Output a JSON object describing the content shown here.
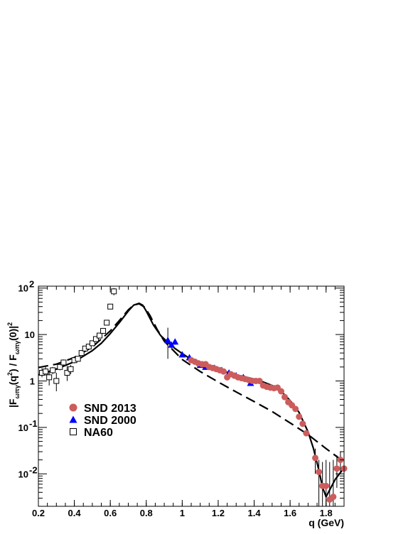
{
  "chart_data": {
    "type": "scatter",
    "xlabel": "q (GeV)",
    "ylabel_parts": [
      "|F",
      "ωπγ",
      "(q",
      "2",
      ") / F",
      "ωπγ",
      "(0)|",
      "2"
    ],
    "xlim": [
      0.2,
      1.9
    ],
    "ylim": [
      0.002,
      110
    ],
    "yscale": "log",
    "x_ticks": [
      0.2,
      0.4,
      0.6,
      0.8,
      1,
      1.2,
      1.4,
      1.6,
      1.8
    ],
    "x_tick_labels": [
      "0.2",
      "0.4",
      "0.6",
      "0.8",
      "1",
      "1.2",
      "1.4",
      "1.6",
      "1.8"
    ],
    "y_ticks": [
      {
        "value": 0.01,
        "base": "10",
        "exp": "-2"
      },
      {
        "value": 0.1,
        "base": "10",
        "exp": "-1"
      },
      {
        "value": 1,
        "base": "1",
        "exp": ""
      },
      {
        "value": 10,
        "base": "10",
        "exp": ""
      },
      {
        "value": 100,
        "base": "10",
        "exp": "2"
      }
    ],
    "legend": [
      "SND 2013",
      "SND 2000",
      "NA60"
    ],
    "legend_position": "lower-left",
    "colors": {
      "snd2013": "#cd5c5c",
      "snd2000": "#0000ff",
      "na60": "#000000",
      "curve": "#000000"
    },
    "series": [
      {
        "name": "NA60",
        "marker": "open-square",
        "points": [
          {
            "x": 0.22,
            "y": 1.5,
            "lo": 1.2,
            "hi": 1.9
          },
          {
            "x": 0.24,
            "y": 1.6,
            "lo": 1.3,
            "hi": 2.0
          },
          {
            "x": 0.26,
            "y": 1.2,
            "lo": 0.8,
            "hi": 1.6
          },
          {
            "x": 0.28,
            "y": 1.7,
            "lo": 1.4,
            "hi": 2.0
          },
          {
            "x": 0.3,
            "y": 1.0,
            "lo": 0.6,
            "hi": 1.5
          },
          {
            "x": 0.32,
            "y": 2.0,
            "lo": 1.7,
            "hi": 2.4
          },
          {
            "x": 0.34,
            "y": 2.5,
            "lo": 2.1,
            "hi": 2.9
          },
          {
            "x": 0.36,
            "y": 1.5,
            "lo": 1.0,
            "hi": 2.1
          },
          {
            "x": 0.38,
            "y": 1.8,
            "lo": 1.4,
            "hi": 2.2
          },
          {
            "x": 0.4,
            "y": 2.8,
            "lo": 2.4,
            "hi": 3.2
          },
          {
            "x": 0.42,
            "y": 3.0,
            "lo": 2.6,
            "hi": 3.4
          },
          {
            "x": 0.44,
            "y": 4.0,
            "lo": 3.5,
            "hi": 4.5
          },
          {
            "x": 0.46,
            "y": 5.0,
            "lo": 4.5,
            "hi": 5.6
          },
          {
            "x": 0.48,
            "y": 5.5,
            "lo": 5.0,
            "hi": 6.0
          },
          {
            "x": 0.5,
            "y": 6.5,
            "lo": 5.8,
            "hi": 7.2
          },
          {
            "x": 0.52,
            "y": 8.0,
            "lo": 7.2,
            "hi": 8.8
          },
          {
            "x": 0.54,
            "y": 9.5,
            "lo": 8.5,
            "hi": 10.5
          },
          {
            "x": 0.56,
            "y": 12.0,
            "lo": 10.5,
            "hi": 13.5
          },
          {
            "x": 0.58,
            "y": 18.0,
            "lo": 16.0,
            "hi": 20.0
          },
          {
            "x": 0.6,
            "y": 40.0,
            "lo": 35.0,
            "hi": 45.0
          },
          {
            "x": 0.62,
            "y": 85.0,
            "lo": 70.0,
            "hi": 100.0
          }
        ]
      },
      {
        "name": "SND 2000",
        "marker": "triangle",
        "points": [
          {
            "x": 0.92,
            "y": 7.5,
            "lo": 3.0,
            "hi": 14.0
          },
          {
            "x": 0.94,
            "y": 6.0,
            "lo": 5.0,
            "hi": 7.0
          },
          {
            "x": 0.96,
            "y": 7.0,
            "lo": 6.0,
            "hi": 8.0
          },
          {
            "x": 1.0,
            "y": 3.7,
            "lo": 3.3,
            "hi": 4.1
          },
          {
            "x": 1.04,
            "y": 3.2,
            "lo": 2.9,
            "hi": 3.5
          },
          {
            "x": 1.1,
            "y": 2.2,
            "lo": 2.0,
            "hi": 2.4
          },
          {
            "x": 1.13,
            "y": 2.0,
            "lo": 1.8,
            "hi": 2.2
          },
          {
            "x": 1.18,
            "y": 1.9,
            "lo": 1.7,
            "hi": 2.1
          },
          {
            "x": 1.22,
            "y": 1.7,
            "lo": 1.5,
            "hi": 1.9
          },
          {
            "x": 1.26,
            "y": 1.5,
            "lo": 1.3,
            "hi": 1.7
          },
          {
            "x": 1.3,
            "y": 1.3,
            "lo": 1.15,
            "hi": 1.45
          },
          {
            "x": 1.34,
            "y": 1.2,
            "lo": 1.05,
            "hi": 1.35
          },
          {
            "x": 1.38,
            "y": 0.9,
            "lo": 0.8,
            "hi": 1.0
          }
        ]
      },
      {
        "name": "SND 2013",
        "marker": "circle",
        "points": [
          {
            "x": 1.05,
            "y": 2.8
          },
          {
            "x": 1.07,
            "y": 2.6
          },
          {
            "x": 1.09,
            "y": 2.4
          },
          {
            "x": 1.11,
            "y": 2.3
          },
          {
            "x": 1.13,
            "y": 2.3
          },
          {
            "x": 1.15,
            "y": 2.0
          },
          {
            "x": 1.17,
            "y": 1.9
          },
          {
            "x": 1.19,
            "y": 1.8
          },
          {
            "x": 1.21,
            "y": 1.7
          },
          {
            "x": 1.23,
            "y": 1.6
          },
          {
            "x": 1.25,
            "y": 1.2
          },
          {
            "x": 1.27,
            "y": 1.4
          },
          {
            "x": 1.29,
            "y": 1.3
          },
          {
            "x": 1.31,
            "y": 1.2
          },
          {
            "x": 1.33,
            "y": 1.15
          },
          {
            "x": 1.35,
            "y": 1.1
          },
          {
            "x": 1.37,
            "y": 1.05
          },
          {
            "x": 1.39,
            "y": 1.0
          },
          {
            "x": 1.41,
            "y": 1.0
          },
          {
            "x": 1.43,
            "y": 1.0
          },
          {
            "x": 1.45,
            "y": 0.8
          },
          {
            "x": 1.47,
            "y": 0.75
          },
          {
            "x": 1.49,
            "y": 0.72
          },
          {
            "x": 1.51,
            "y": 0.7
          },
          {
            "x": 1.53,
            "y": 0.72
          },
          {
            "x": 1.55,
            "y": 0.6
          },
          {
            "x": 1.57,
            "y": 0.45
          },
          {
            "x": 1.59,
            "y": 0.35
          },
          {
            "x": 1.61,
            "y": 0.3
          },
          {
            "x": 1.63,
            "y": 0.25
          },
          {
            "x": 1.65,
            "y": 0.17
          },
          {
            "x": 1.67,
            "y": 0.12
          },
          {
            "x": 1.69,
            "y": 0.075
          },
          {
            "x": 1.74,
            "y": 0.022,
            "lo": 0.01,
            "hi": 0.035
          },
          {
            "x": 1.76,
            "y": 0.011,
            "lo": 0.002,
            "hi": 0.02
          },
          {
            "x": 1.78,
            "y": 0.0055,
            "lo": 0.002,
            "hi": 0.018
          },
          {
            "x": 1.8,
            "y": 0.0055,
            "lo": 0.002,
            "hi": 0.02
          },
          {
            "x": 1.82,
            "y": 0.0028,
            "lo": 0.002,
            "hi": 0.018
          },
          {
            "x": 1.84,
            "y": 0.0032,
            "lo": 0.002,
            "hi": 0.02
          },
          {
            "x": 1.86,
            "y": 0.013,
            "lo": 0.005,
            "hi": 0.025
          },
          {
            "x": 1.88,
            "y": 0.02,
            "lo": 0.01,
            "hi": 0.03
          },
          {
            "x": 1.9,
            "y": 0.013,
            "lo": 0.005,
            "hi": 0.025
          }
        ]
      }
    ],
    "curves": [
      {
        "style": "solid",
        "points": [
          [
            0.2,
            1.35
          ],
          [
            0.3,
            1.8
          ],
          [
            0.4,
            2.6
          ],
          [
            0.5,
            4.5
          ],
          [
            0.55,
            6.5
          ],
          [
            0.6,
            10.5
          ],
          [
            0.65,
            18
          ],
          [
            0.7,
            32
          ],
          [
            0.73,
            43
          ],
          [
            0.76,
            47
          ],
          [
            0.78,
            43
          ],
          [
            0.8,
            32
          ],
          [
            0.84,
            16
          ],
          [
            0.88,
            9.5
          ],
          [
            0.92,
            6.8
          ],
          [
            0.96,
            5.0
          ],
          [
            1.0,
            3.9
          ],
          [
            1.05,
            2.9
          ],
          [
            1.1,
            2.35
          ],
          [
            1.2,
            1.75
          ],
          [
            1.3,
            1.35
          ],
          [
            1.4,
            1.1
          ],
          [
            1.45,
            0.95
          ],
          [
            1.5,
            0.8
          ],
          [
            1.55,
            0.6
          ],
          [
            1.6,
            0.38
          ],
          [
            1.65,
            0.21
          ],
          [
            1.7,
            0.08
          ],
          [
            1.73,
            0.035
          ],
          [
            1.76,
            0.012
          ],
          [
            1.78,
            0.0052
          ],
          [
            1.8,
            0.0032
          ],
          [
            1.82,
            0.0045
          ],
          [
            1.85,
            0.0075
          ],
          [
            1.9,
            0.0135
          ]
        ]
      },
      {
        "style": "dashed",
        "points": [
          [
            0.2,
            1.95
          ],
          [
            0.3,
            2.3
          ],
          [
            0.4,
            3.2
          ],
          [
            0.5,
            5.4
          ],
          [
            0.6,
            12
          ],
          [
            0.65,
            20
          ],
          [
            0.7,
            34
          ],
          [
            0.73,
            43
          ],
          [
            0.76,
            46
          ],
          [
            0.79,
            39
          ],
          [
            0.82,
            26
          ],
          [
            0.86,
            13
          ],
          [
            0.9,
            7.2
          ],
          [
            1.0,
            2.9
          ],
          [
            1.1,
            1.6
          ],
          [
            1.2,
            0.95
          ],
          [
            1.3,
            0.58
          ],
          [
            1.4,
            0.36
          ],
          [
            1.5,
            0.22
          ],
          [
            1.6,
            0.125
          ],
          [
            1.7,
            0.07
          ],
          [
            1.8,
            0.035
          ],
          [
            1.9,
            0.018
          ]
        ]
      }
    ]
  }
}
